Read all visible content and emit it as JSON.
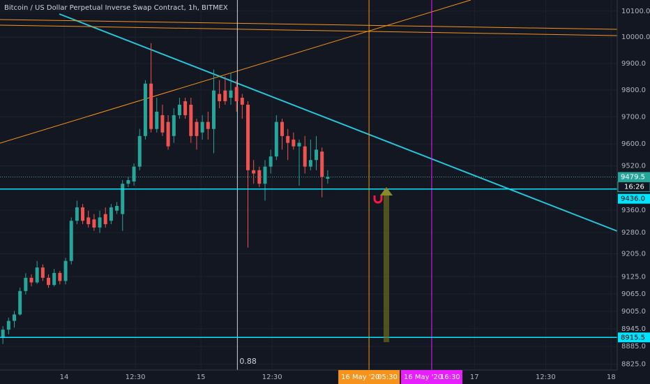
{
  "chart_data": {
    "type": "candlestick",
    "title": "Bitcoin / US Dollar Perpetual Inverse Swap Contract, 1h, BITMEX",
    "log_scale": true,
    "grid": true,
    "up_color": "#26a69a",
    "down_color": "#ef5350",
    "x": [
      -10.75,
      -9.75,
      -8.75,
      -7.75,
      -6.75,
      -5.75,
      -4.75,
      -3.75,
      -2.75,
      -1.75,
      -0.75,
      0.25,
      1.25,
      2.25,
      3.25,
      4.25,
      5.25,
      6.25,
      7.25,
      8.25,
      9.25,
      10.25,
      11.25,
      12.25,
      13.25,
      14.25,
      15.25,
      16.25,
      17.25,
      18.25,
      19.25,
      20.25,
      21.25,
      22.25,
      23.25,
      24.25,
      25.25,
      26.25,
      27.25,
      28.25,
      29.25,
      30.25,
      31.25,
      32.25,
      33.25,
      34.25,
      35.25,
      36.25,
      37.25,
      38.25,
      39.25,
      40.25,
      41.25,
      42.25,
      43.25,
      44.25,
      45.25,
      46.25
    ],
    "open": [
      8915,
      8942,
      8972,
      8994,
      9075,
      9121,
      9105,
      9157,
      9121,
      9096,
      9138,
      9110,
      9180,
      9322,
      9370,
      9334,
      9327,
      9298,
      9346,
      9322,
      9358,
      9346,
      9455,
      9463,
      9517,
      9629,
      9824,
      9655,
      9706,
      9681,
      9629,
      9706,
      9758,
      9745,
      9681,
      9642,
      9681,
      9655,
      9785,
      9798,
      9771,
      9811,
      9771,
      9745,
      9504,
      9504,
      9455,
      9517,
      9554,
      9681,
      9629,
      9616,
      9591,
      9591,
      9517,
      9541,
      9572,
      9473
    ],
    "high": [
      8954,
      8983,
      9006,
      9087,
      9137,
      9133,
      9180,
      9168,
      9133,
      9152,
      9145,
      9191,
      9334,
      9394,
      9382,
      9358,
      9346,
      9358,
      9370,
      9382,
      9389,
      9468,
      9480,
      9529,
      9655,
      9837,
      9977,
      9771,
      9745,
      9706,
      9732,
      9771,
      9771,
      9771,
      9693,
      9706,
      9719,
      9877,
      9837,
      9851,
      9864,
      9837,
      9785,
      9758,
      9541,
      9517,
      9541,
      9579,
      9706,
      9693,
      9655,
      9642,
      9616,
      9629,
      9616,
      9629,
      9587,
      9504
    ],
    "low": [
      8893,
      8926,
      8949,
      8990,
      9063,
      9091,
      9100,
      9110,
      9086,
      9091,
      9098,
      9098,
      9168,
      9310,
      9310,
      9298,
      9286,
      9279,
      9298,
      9310,
      9346,
      9286,
      9443,
      9448,
      9504,
      9616,
      9642,
      9642,
      9629,
      9579,
      9604,
      9693,
      9693,
      9604,
      9579,
      9616,
      9616,
      9566,
      9732,
      9745,
      9745,
      9719,
      9693,
      9227,
      9455,
      9443,
      9394,
      9492,
      9541,
      9579,
      9541,
      9579,
      9448,
      9492,
      9504,
      9504,
      9406,
      9455
    ],
    "close": [
      8942,
      8972,
      8994,
      9075,
      9121,
      9105,
      9157,
      9121,
      9096,
      9138,
      9110,
      9180,
      9322,
      9370,
      9322,
      9310,
      9298,
      9334,
      9310,
      9370,
      9375,
      9455,
      9468,
      9517,
      9629,
      9824,
      9655,
      9719,
      9642,
      9591,
      9706,
      9745,
      9706,
      9629,
      9629,
      9681,
      9655,
      9798,
      9758,
      9758,
      9798,
      9758,
      9745,
      9504,
      9492,
      9455,
      9517,
      9554,
      9681,
      9629,
      9604,
      9591,
      9604,
      9517,
      9541,
      9579,
      9480,
      9479.5
    ],
    "xlim": [
      -11.26,
      97.06
    ],
    "xticks": [
      {
        "value": 0,
        "label": "14"
      },
      {
        "value": 12.5,
        "label": "12:30"
      },
      {
        "value": 24,
        "label": "15"
      },
      {
        "value": 36.5,
        "label": "12:30"
      },
      {
        "value": 72,
        "label": "17"
      },
      {
        "value": 84.5,
        "label": "12:30"
      },
      {
        "value": 96,
        "label": "18"
      }
    ],
    "ylim": [
      8805,
      10143
    ],
    "yticks": [
      {
        "value": 10100,
        "label": "10100.0"
      },
      {
        "value": 10000,
        "label": "10000.0"
      },
      {
        "value": 9900,
        "label": "9900.0"
      },
      {
        "value": 9800,
        "label": "9800.0"
      },
      {
        "value": 9700,
        "label": "9700.0"
      },
      {
        "value": 9600,
        "label": "9600.0"
      },
      {
        "value": 9520,
        "label": "9520.0"
      },
      {
        "value": 9360,
        "label": "9360.0"
      },
      {
        "value": 9280,
        "label": "9280.0"
      },
      {
        "value": 9205,
        "label": "9205.0"
      },
      {
        "value": 9125,
        "label": "9125.0"
      },
      {
        "value": 9065,
        "label": "9065.0"
      },
      {
        "value": 9005,
        "label": "9005.0"
      },
      {
        "value": 8945,
        "label": "8945.0"
      },
      {
        "value": 8885,
        "label": "8885.0"
      },
      {
        "value": 8825,
        "label": "8825.0"
      }
    ],
    "last_price": 9479.5,
    "countdown": "16:26",
    "levels": [
      {
        "value": 9436,
        "label": "9436.0",
        "color": "#00e5ff"
      },
      {
        "value": 8915.5,
        "color": "#00e5ff"
      }
    ],
    "markers": [
      {
        "x": 53.5,
        "date": "16 May '20",
        "time": "05:30",
        "color": "#f7931a"
      },
      {
        "x": 64.5,
        "date": "16 May '20",
        "time": "16:30",
        "color": "#e91eff"
      }
    ],
    "crosshair": {
      "x": 30.4,
      "label": "0.88"
    }
  }
}
